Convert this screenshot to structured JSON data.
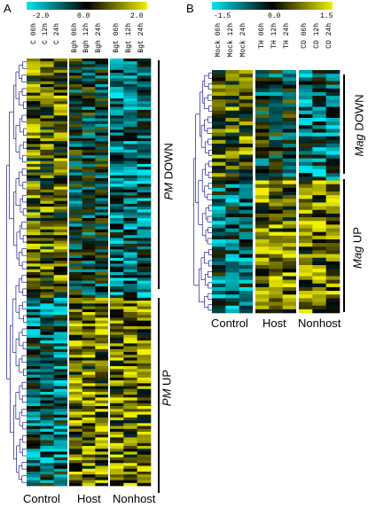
{
  "panelA": {
    "letter": "A",
    "scale": {
      "min": "-2.0",
      "mid": "0.0",
      "max": "2.0"
    },
    "columns": [
      "C 06h",
      "C 12h",
      "C 24h",
      "Bgh 06h",
      "Bgh 12h",
      "Bgh 24h",
      "Bgt 06h",
      "Bgt 12h",
      "Bgt 24h"
    ],
    "groups": [
      "Control",
      "Host",
      "Nonhost"
    ],
    "clusters": [
      {
        "italic": "PM",
        "text": " DOWN"
      },
      {
        "italic": "PM",
        "text": " UP"
      }
    ]
  },
  "panelB": {
    "letter": "B",
    "scale": {
      "min": "-1.5",
      "mid": "0.0",
      "max": "1.5"
    },
    "columns": [
      "Mock 06h",
      "Mock 12h",
      "Mock 24h",
      "TH 06h",
      "TH 12h",
      "TH 24h",
      "CD 06h",
      "CD 12h",
      "CD 24h"
    ],
    "groups": [
      "Control",
      "Host",
      "Nonhost"
    ],
    "clusters": [
      {
        "italic": "Mag",
        "text": " DOWN"
      },
      {
        "italic": "Mag",
        "text": " UP"
      }
    ]
  },
  "colors": {
    "low": "#00e6f0",
    "zero": "#000000",
    "high": "#f0f000",
    "dendrogram": "#1c1c8c"
  }
}
